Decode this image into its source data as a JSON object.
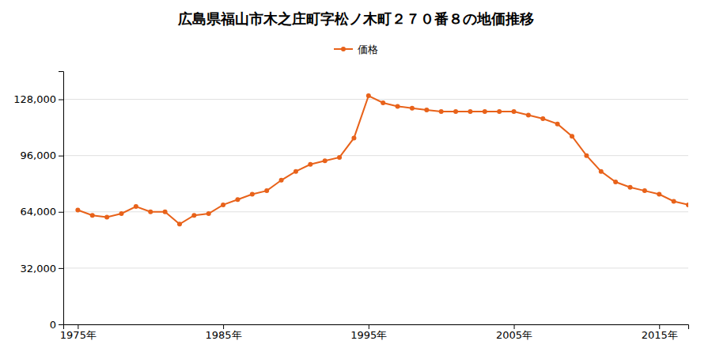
{
  "chart_data": {
    "type": "line",
    "title": "広島県福山市木之庄町字松ノ木町２７０番８の地価推移",
    "x": [
      1975,
      1976,
      1977,
      1978,
      1979,
      1980,
      1981,
      1982,
      1983,
      1984,
      1985,
      1986,
      1987,
      1988,
      1989,
      1990,
      1991,
      1992,
      1993,
      1994,
      1995,
      1996,
      1997,
      1998,
      1999,
      2000,
      2001,
      2002,
      2003,
      2004,
      2005,
      2006,
      2007,
      2008,
      2009,
      2010,
      2011,
      2012,
      2013,
      2014,
      2015,
      2016,
      2017
    ],
    "series": [
      {
        "name": "価格",
        "color": "#E8621A",
        "marker": "circle",
        "values": [
          65000,
          62000,
          61000,
          63000,
          67000,
          64000,
          64000,
          57000,
          62000,
          63000,
          68000,
          71000,
          74000,
          76000,
          82000,
          87000,
          91000,
          93000,
          95000,
          106000,
          130000,
          126000,
          124000,
          123000,
          122000,
          121000,
          121000,
          121000,
          121000,
          121000,
          121000,
          119000,
          117000,
          114000,
          107000,
          96000,
          87000,
          81000,
          78000,
          76000,
          74000,
          70000,
          68000
        ]
      }
    ],
    "xlim": [
      1974,
      2017
    ],
    "ylim": [
      0,
      144000
    ],
    "xticks": [
      {
        "value": 1975,
        "label": "1975年"
      },
      {
        "value": 1985,
        "label": "1985年"
      },
      {
        "value": 1995,
        "label": "1995年"
      },
      {
        "value": 2005,
        "label": "2005年"
      },
      {
        "value": 2015,
        "label": "2015年"
      }
    ],
    "yticks": [
      0,
      {
        "value": 32000,
        "label": "32,000"
      },
      {
        "value": 64000,
        "label": "64,000"
      },
      {
        "value": 96000,
        "label": "96,000"
      },
      {
        "value": 128000,
        "label": "128,000"
      }
    ],
    "grid": true,
    "legend": "top"
  }
}
